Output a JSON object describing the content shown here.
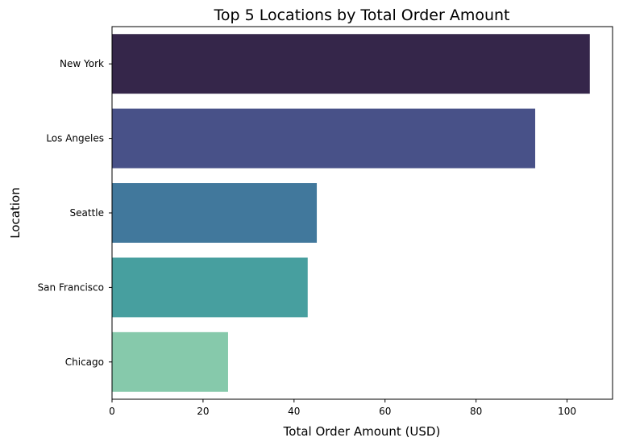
{
  "chart_data": {
    "type": "bar",
    "orientation": "horizontal",
    "title": "Top 5 Locations by Total Order Amount",
    "xlabel": "Total Order Amount (USD)",
    "ylabel": "Location",
    "categories": [
      "New York",
      "Los Angeles",
      "Seattle",
      "San Francisco",
      "Chicago"
    ],
    "values": [
      105,
      93,
      45,
      43,
      25.5
    ],
    "colors": [
      "#35264a",
      "#485188",
      "#41789c",
      "#479f9f",
      "#86c9ab"
    ],
    "xlim": [
      0,
      110
    ],
    "xticks": [
      0,
      20,
      40,
      60,
      80,
      100
    ],
    "grid": false,
    "legend": "none"
  }
}
